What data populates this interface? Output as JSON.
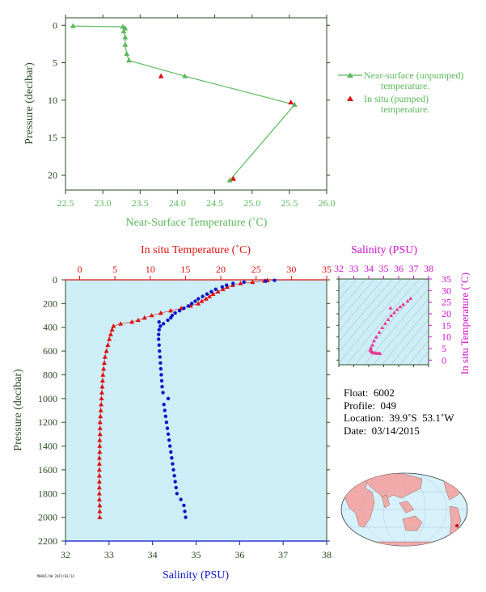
{
  "colors": {
    "green": "#5cb85c",
    "red": "#dd1111",
    "blue": "#0b16c8",
    "magenta": "#cc11cc",
    "panel_bg": "#cdeef7",
    "axis": "#2a4a22"
  },
  "chart_data": [
    {
      "type": "line",
      "id": "near-surface",
      "xlabel": "Near-Surface Temperature (˚C)",
      "ylabel": "Pressure (decibar)",
      "xlim": [
        22.5,
        26.0
      ],
      "ylim": [
        22,
        -1
      ],
      "xticks": [
        "22.5",
        "23.0",
        "23.5",
        "24.0",
        "24.5",
        "25.0",
        "25.5",
        "26.0"
      ],
      "yticks": [
        "0",
        "5",
        "10",
        "15",
        "20"
      ],
      "series": [
        {
          "name": "Near-surface (unpumped) temperature.",
          "marker": "triangle-line",
          "points": [
            [
              22.6,
              0.1
            ],
            [
              23.27,
              0.2
            ],
            [
              23.3,
              0.4
            ],
            [
              23.28,
              0.8
            ],
            [
              23.3,
              1.6
            ],
            [
              23.3,
              2.6
            ],
            [
              23.32,
              3.8
            ],
            [
              23.35,
              4.7
            ],
            [
              24.1,
              6.8
            ],
            [
              25.57,
              10.6
            ],
            [
              24.7,
              20.7
            ]
          ]
        },
        {
          "name": "In situ (pumped) temperature.",
          "marker": "triangle",
          "points": [
            [
              23.78,
              6.8
            ],
            [
              25.52,
              10.3
            ],
            [
              24.75,
              20.5
            ]
          ]
        }
      ]
    },
    {
      "type": "scatter",
      "id": "profile",
      "ylabel": "Pressure (decibar)",
      "top_axis_label": "In situ Temperature (˚C)",
      "bottom_axis_label": "Salinity (PSU)",
      "ylim": [
        2200,
        0
      ],
      "yticks": [
        "0",
        "200",
        "400",
        "600",
        "800",
        "1000",
        "1200",
        "1400",
        "1600",
        "1800",
        "2000",
        "2200"
      ],
      "temperature_lim": [
        -2,
        35
      ],
      "temperature_ticks": [
        "0",
        "5",
        "10",
        "15",
        "20",
        "25",
        "30",
        "35"
      ],
      "salinity_lim": [
        32,
        38
      ],
      "salinity_ticks": [
        "32",
        "33",
        "34",
        "35",
        "36",
        "37",
        "38"
      ],
      "series": [
        {
          "name": "In situ Temperature",
          "pressure": [
            5,
            10,
            20,
            30,
            45,
            60,
            80,
            100,
            120,
            140,
            160,
            180,
            200,
            220,
            240,
            260,
            280,
            300,
            320,
            340,
            355,
            370,
            390,
            420,
            460,
            500,
            550,
            600,
            650,
            700,
            750,
            800,
            850,
            900,
            950,
            1000,
            1050,
            1100,
            1150,
            1200,
            1250,
            1300,
            1350,
            1400,
            1450,
            1500,
            1550,
            1600,
            1650,
            1700,
            1750,
            1800,
            1850,
            1900,
            1950,
            2000
          ],
          "values": [
            26.6,
            26.2,
            24.5,
            22.8,
            21.7,
            20.9,
            20.3,
            19.6,
            18.9,
            18.4,
            17.9,
            17.3,
            16.8,
            15.7,
            14.4,
            12.9,
            11.5,
            10.2,
            9.2,
            8.3,
            7.4,
            5.8,
            4.8,
            4.6,
            4.4,
            4.2,
            4.0,
            3.8,
            3.6,
            3.5,
            3.4,
            3.3,
            3.25,
            3.2,
            3.15,
            3.1,
            3.05,
            3.0,
            2.95,
            2.9,
            2.9,
            2.9,
            2.85,
            2.85,
            2.85,
            2.8,
            2.8,
            2.8,
            2.8,
            2.8,
            2.8,
            2.8,
            2.8,
            2.85,
            2.85,
            2.85
          ]
        },
        {
          "name": "Salinity",
          "pressure": [
            5,
            10,
            20,
            30,
            45,
            60,
            80,
            100,
            120,
            140,
            160,
            180,
            200,
            220,
            240,
            260,
            280,
            300,
            320,
            340,
            355,
            370,
            390,
            420,
            460,
            500,
            550,
            600,
            650,
            700,
            750,
            800,
            850,
            900,
            950,
            1000,
            1050,
            1100,
            1150,
            1200,
            1250,
            1300,
            1350,
            1400,
            1450,
            1500,
            1550,
            1600,
            1650,
            1700,
            1750,
            1800,
            1850,
            1900,
            1950,
            2000
          ],
          "values": [
            36.8,
            36.6,
            36.1,
            35.85,
            35.7,
            35.6,
            35.45,
            35.35,
            35.25,
            35.15,
            35.05,
            34.98,
            34.9,
            34.82,
            34.72,
            34.62,
            34.52,
            34.45,
            34.42,
            34.35,
            34.15,
            34.25,
            34.18,
            34.15,
            34.14,
            34.14,
            34.15,
            34.16,
            34.17,
            34.18,
            34.19,
            34.2,
            34.21,
            34.22,
            34.24,
            34.36,
            34.26,
            34.28,
            34.3,
            34.32,
            34.34,
            34.36,
            34.38,
            34.4,
            34.42,
            34.44,
            34.46,
            34.48,
            34.5,
            34.52,
            34.54,
            34.56,
            34.65,
            34.72,
            34.74,
            34.76
          ]
        }
      ]
    },
    {
      "type": "scatter",
      "id": "ts-diagram",
      "xlabel": "Salinity (PSU)",
      "ylabel": "In situ Temperature (˚C)",
      "xlim": [
        32,
        38
      ],
      "ylim": [
        -2,
        35
      ],
      "xticks": [
        "32",
        "33",
        "34",
        "35",
        "36",
        "37",
        "38"
      ],
      "yticks": [
        "0",
        "5",
        "10",
        "15",
        "20",
        "25",
        "30",
        "35"
      ],
      "points": [
        [
          36.8,
          26.6
        ],
        [
          36.6,
          25.5
        ],
        [
          36.3,
          24
        ],
        [
          36.1,
          23
        ],
        [
          35.9,
          21.8
        ],
        [
          35.7,
          20.5
        ],
        [
          35.5,
          19.2
        ],
        [
          35.3,
          17.5
        ],
        [
          35.1,
          15.8
        ],
        [
          34.9,
          14
        ],
        [
          34.7,
          12
        ],
        [
          34.5,
          10
        ],
        [
          34.35,
          8.3
        ],
        [
          34.25,
          6.5
        ],
        [
          34.15,
          5.2
        ],
        [
          34.1,
          4.4
        ],
        [
          34.15,
          4.0
        ],
        [
          34.2,
          3.6
        ],
        [
          34.25,
          3.3
        ],
        [
          34.35,
          3.1
        ],
        [
          34.45,
          3.0
        ],
        [
          34.55,
          2.9
        ],
        [
          34.65,
          2.85
        ],
        [
          34.75,
          2.85
        ],
        [
          35.45,
          22.5
        ]
      ]
    }
  ],
  "legend": {
    "unpumped_line1": "Near-surface (unpumped)",
    "unpumped_line2": "temperature.",
    "pumped_line1": "In situ (pumped)",
    "pumped_line2": "temperature."
  },
  "info": {
    "float": "Float:  6002",
    "profile": "Profile:  049",
    "location": "Location:  39.9˚S  53.1˚W",
    "date": "Date:  03/14/2015"
  },
  "footer_tag": "MBARI/UW  2015/03/14"
}
